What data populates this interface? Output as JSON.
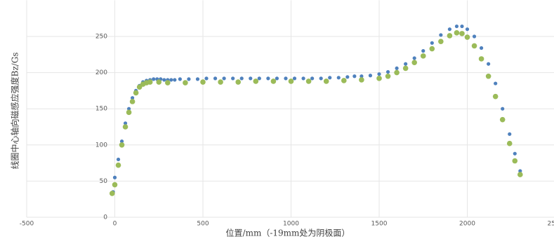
{
  "chart_data": {
    "type": "scatter",
    "x_label": "位置/mm（-19mm处为阴极面）",
    "y_label": "线圈中心轴向磁感应强度Bz/Gs",
    "xlim": [
      -500,
      2500
    ],
    "xticks": [
      -500,
      0,
      500,
      1000,
      1500,
      2000,
      2500
    ],
    "ylim": [
      0,
      300
    ],
    "yticks": [
      0,
      50,
      100,
      150,
      200,
      250
    ],
    "grid": true,
    "series": [
      {
        "color": "#4f81bd",
        "x": [
          -10,
          0,
          20,
          40,
          60,
          80,
          100,
          120,
          140,
          160,
          180,
          200,
          220,
          240,
          260,
          280,
          300,
          320,
          340,
          370,
          420,
          470,
          520,
          570,
          620,
          670,
          720,
          770,
          820,
          870,
          920,
          970,
          1020,
          1070,
          1120,
          1170,
          1220,
          1270,
          1320,
          1360,
          1400,
          1450,
          1500,
          1550,
          1600,
          1650,
          1700,
          1750,
          1800,
          1850,
          1900,
          1940,
          1970,
          2000,
          2040,
          2080,
          2120,
          2160,
          2200,
          2240,
          2270,
          2300
        ],
        "values": [
          35,
          55,
          80,
          105,
          130,
          150,
          165,
          175,
          182,
          187,
          189,
          190,
          191,
          191,
          191,
          190,
          190,
          190,
          190,
          191,
          191,
          191,
          192,
          192,
          192,
          192,
          192,
          192,
          192,
          192,
          192,
          192,
          192,
          192,
          192,
          192,
          193,
          193,
          194,
          195,
          195,
          196,
          198,
          201,
          206,
          212,
          220,
          230,
          241,
          252,
          260,
          264,
          264,
          260,
          250,
          234,
          212,
          185,
          150,
          115,
          88,
          64
        ]
      },
      {
        "color": "#9bbb59",
        "x": [
          -15,
          0,
          20,
          40,
          60,
          80,
          100,
          120,
          140,
          160,
          180,
          200,
          250,
          300,
          400,
          500,
          600,
          700,
          800,
          900,
          1000,
          1100,
          1200,
          1300,
          1400,
          1500,
          1550,
          1600,
          1650,
          1700,
          1750,
          1800,
          1850,
          1900,
          1940,
          1970,
          2000,
          2040,
          2080,
          2120,
          2160,
          2200,
          2240,
          2270,
          2300
        ],
        "values": [
          33,
          45,
          72,
          100,
          125,
          145,
          160,
          172,
          180,
          184,
          186,
          187,
          187,
          186,
          186,
          187,
          187,
          187,
          188,
          188,
          188,
          188,
          188,
          189,
          190,
          192,
          195,
          200,
          206,
          214,
          223,
          233,
          243,
          251,
          255,
          254,
          249,
          237,
          219,
          195,
          167,
          135,
          102,
          78,
          59
        ]
      }
    ]
  }
}
